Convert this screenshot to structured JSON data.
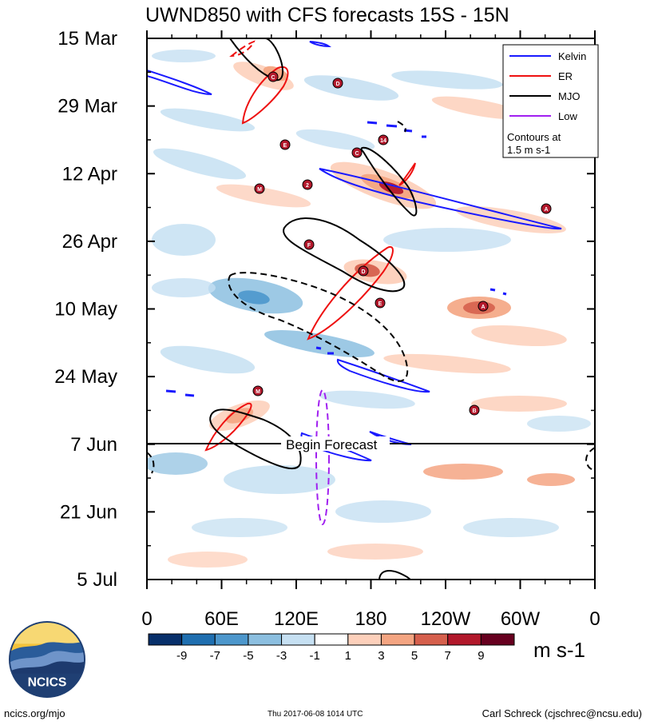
{
  "chart_data": {
    "type": "heatmap",
    "title": "UWND850 with CFS forecasts  15S - 15N",
    "y_ticks": [
      "15 Mar",
      "29 Mar",
      "12 Apr",
      "26 Apr",
      "10 May",
      "24 May",
      "7 Jun",
      "21 Jun",
      "5 Jul"
    ],
    "y_range": [
      "15 Mar",
      "5 Jul"
    ],
    "x_ticks": [
      "0",
      "60E",
      "120E",
      "180",
      "120W",
      "60W",
      "0"
    ],
    "x_range_deg_east": [
      0,
      360
    ],
    "colorbar_levels": [
      "-9",
      "-7",
      "-5",
      "-3",
      "-1",
      "1",
      "3",
      "5",
      "7",
      "9"
    ],
    "colorbar_colors": [
      "#08306b",
      "#1f6fb0",
      "#4d97cc",
      "#8cbfe0",
      "#c6e0f2",
      "#ffffff",
      "#fdd0bb",
      "#f4a582",
      "#d6604d",
      "#b2182b",
      "#67001f"
    ],
    "colorbar_units": "m s-1",
    "forecast_marker_label": "Begin Forecast",
    "forecast_start": "7 Jun",
    "legend": [
      {
        "label": "Kelvin",
        "color": "#1a1aff"
      },
      {
        "label": "ER",
        "color": "#ee1111"
      },
      {
        "label": "MJO",
        "color": "#000000"
      },
      {
        "label": "Low",
        "color": "#a020f0"
      }
    ],
    "legend_note_line1": "Contours at",
    "legend_note_line2": "1.5 m s-1",
    "storm_labels": [
      "C",
      "D",
      "E",
      "14",
      "C",
      "M",
      "2",
      "A",
      "F",
      "D",
      "E",
      "A",
      "M",
      "B"
    ]
  },
  "footer": {
    "left": "ncics.org/mjo",
    "center": "Thu 2017-06-08 1014 UTC",
    "right": "Carl Schreck (cjschrec@ncsu.edu)"
  },
  "logo": {
    "text": "NCICS"
  }
}
